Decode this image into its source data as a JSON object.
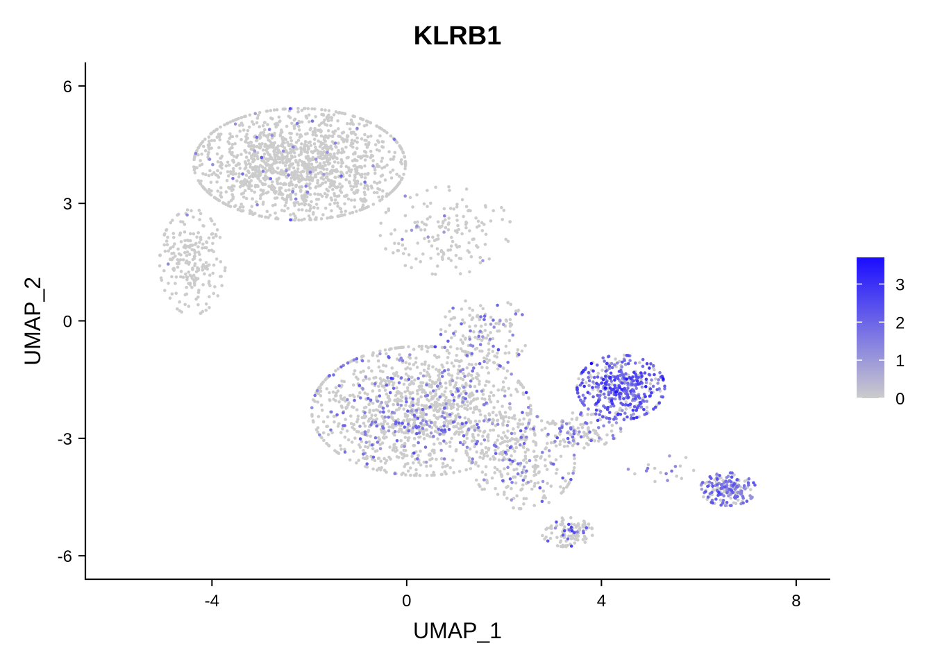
{
  "chart_data": {
    "type": "scatter",
    "title": "KLRB1",
    "xlabel": "UMAP_1",
    "ylabel": "UMAP_2",
    "xlim": [
      -6.6,
      8.7
    ],
    "ylim": [
      -6.6,
      6.6
    ],
    "x_ticks": [
      -4,
      0,
      4,
      8
    ],
    "x_tick_labels": [
      "-4",
      "0",
      "4",
      "8"
    ],
    "y_ticks": [
      -6,
      -3,
      0,
      3,
      6
    ],
    "y_tick_labels": [
      "-6",
      "-3",
      "0",
      "3",
      "6"
    ],
    "grid": false,
    "point_color_by": "KLRB1 expression",
    "colorbar": {
      "low_color": "#cccccc",
      "high_color": "#1a0dff",
      "range": [
        0,
        3.7
      ],
      "ticks": [
        0,
        1,
        2,
        3
      ],
      "tick_labels": [
        "0",
        "1",
        "2",
        "3"
      ],
      "placement": "right"
    },
    "regions": [
      {
        "center": [
          -2.2,
          4.0
        ],
        "spread": [
          1.45,
          0.95
        ],
        "count": 1500,
        "expr_prob": 0.02,
        "expr_max": 2.0
      },
      {
        "center": [
          -4.4,
          1.5
        ],
        "spread": [
          0.45,
          0.9
        ],
        "count": 220,
        "expr_prob": 0.03,
        "expr_max": 1.5
      },
      {
        "center": [
          0.8,
          2.3
        ],
        "spread": [
          0.9,
          0.75
        ],
        "count": 160,
        "expr_prob": 0.05,
        "expr_max": 1.5
      },
      {
        "center": [
          0.3,
          -2.3
        ],
        "spread": [
          1.5,
          1.1
        ],
        "count": 1300,
        "expr_prob": 0.18,
        "expr_max": 2.2
      },
      {
        "center": [
          1.6,
          -0.3
        ],
        "spread": [
          0.6,
          0.6
        ],
        "count": 140,
        "expr_prob": 0.25,
        "expr_max": 2.0
      },
      {
        "center": [
          2.4,
          -3.6
        ],
        "spread": [
          0.7,
          0.8
        ],
        "count": 240,
        "expr_prob": 0.2,
        "expr_max": 2.4
      },
      {
        "center": [
          3.3,
          -5.4
        ],
        "spread": [
          0.35,
          0.25
        ],
        "count": 110,
        "expr_prob": 0.12,
        "expr_max": 3.0
      },
      {
        "center": [
          4.4,
          -1.7
        ],
        "spread": [
          0.6,
          0.55
        ],
        "count": 430,
        "expr_prob": 0.75,
        "expr_max": 3.0
      },
      {
        "center": [
          3.5,
          -2.8
        ],
        "spread": [
          0.6,
          0.3
        ],
        "count": 130,
        "expr_prob": 0.3,
        "expr_max": 2.0
      },
      {
        "center": [
          6.6,
          -4.3
        ],
        "spread": [
          0.38,
          0.28
        ],
        "count": 190,
        "expr_prob": 0.6,
        "expr_max": 2.4
      },
      {
        "center": [
          5.3,
          -3.9
        ],
        "spread": [
          0.7,
          0.3
        ],
        "count": 18,
        "expr_prob": 0.35,
        "expr_max": 2.0
      }
    ]
  }
}
